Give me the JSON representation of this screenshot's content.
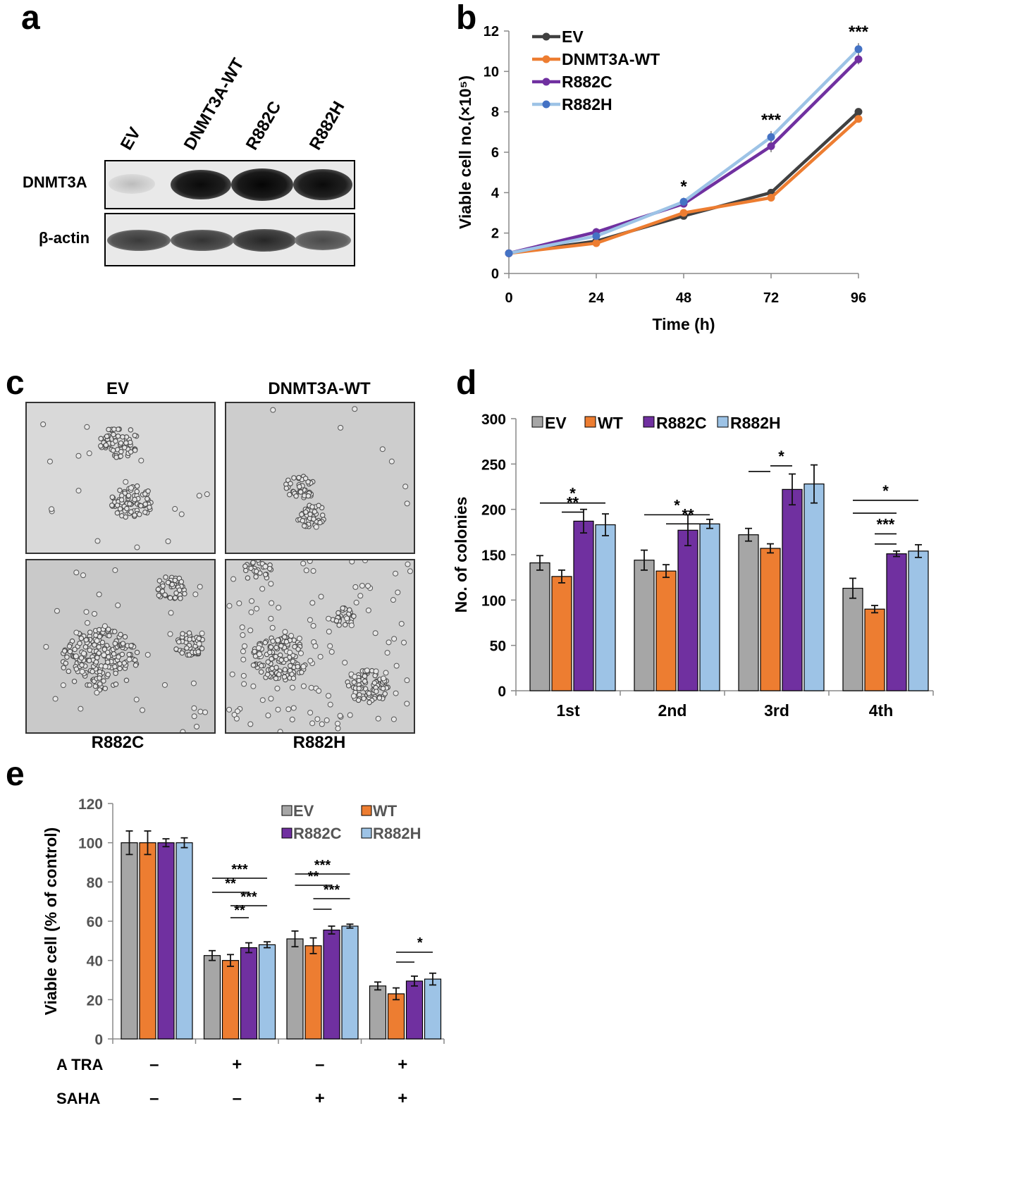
{
  "panels": {
    "a": "a",
    "b": "b",
    "c": "c",
    "d": "d",
    "e": "e"
  },
  "blot": {
    "lanes": [
      "EV",
      "DNMT3A-WT",
      "R882C",
      "R882H"
    ],
    "rows": [
      "DNMT3A",
      "β-actin"
    ]
  },
  "micrographs": {
    "top": [
      "EV",
      "DNMT3A-WT"
    ],
    "bottom": [
      "R882C",
      "R882H"
    ]
  },
  "chart_data": [
    {
      "panel": "b",
      "type": "line",
      "xlabel": "Time (h)",
      "ylabel": "Viable cell no.(×10⁵)",
      "x": [
        0,
        24,
        48,
        72,
        96
      ],
      "xlim": [
        0,
        96
      ],
      "ylim": [
        0,
        12
      ],
      "yticks": [
        0,
        2,
        4,
        6,
        8,
        10,
        12
      ],
      "series": [
        {
          "name": "EV",
          "color": "#404040",
          "values": [
            1.0,
            1.6,
            2.85,
            4.0,
            8.0
          ],
          "errors": [
            0.05,
            0.1,
            0.1,
            0.12,
            0.15
          ]
        },
        {
          "name": "DNMT3A-WT",
          "color": "#ed7d31",
          "values": [
            1.0,
            1.5,
            3.0,
            3.75,
            7.65
          ],
          "errors": [
            0.05,
            0.1,
            0.1,
            0.12,
            0.15
          ]
        },
        {
          "name": "R882C",
          "color": "#7030a0",
          "values": [
            1.0,
            2.05,
            3.45,
            6.3,
            10.6
          ],
          "errors": [
            0.05,
            0.2,
            0.15,
            0.3,
            0.25
          ]
        },
        {
          "name": "R882H",
          "color": "#9dc3e6",
          "marker_color": "#4472c4",
          "values": [
            1.0,
            1.85,
            3.55,
            6.75,
            11.1
          ],
          "errors": [
            0.05,
            0.15,
            0.2,
            0.3,
            0.3
          ]
        }
      ],
      "annotations": [
        {
          "x": 48,
          "text": "*"
        },
        {
          "x": 72,
          "text": "***"
        },
        {
          "x": 96,
          "text": "***"
        }
      ]
    },
    {
      "panel": "d",
      "type": "bar",
      "ylabel": "No. of colonies",
      "categories": [
        "1st",
        "2nd",
        "3rd",
        "4th"
      ],
      "ylim": [
        0,
        300
      ],
      "yticks": [
        0,
        50,
        100,
        150,
        200,
        250,
        300
      ],
      "series": [
        {
          "name": "EV",
          "color": "#a6a6a6",
          "values": [
            141,
            144,
            172,
            113
          ],
          "errors": [
            8,
            11,
            7,
            11
          ]
        },
        {
          "name": "WT",
          "color": "#ed7d31",
          "values": [
            126,
            132,
            157,
            90
          ],
          "errors": [
            7,
            7,
            5,
            4
          ]
        },
        {
          "name": "R882C",
          "color": "#7030a0",
          "values": [
            187,
            177,
            222,
            151
          ],
          "errors": [
            13,
            17,
            17,
            3
          ]
        },
        {
          "name": "R882H",
          "color": "#9dc3e6",
          "values": [
            183,
            184,
            228,
            154
          ],
          "errors": [
            12,
            5,
            21,
            7
          ]
        }
      ],
      "annotations": [
        {
          "text": "*",
          "group": 0
        },
        {
          "text": "**",
          "group": 0
        },
        {
          "text": "*",
          "group": 1
        },
        {
          "text": "**",
          "group": 1
        },
        {
          "text": "*",
          "group": 2
        },
        {
          "text": "*",
          "group": 3
        },
        {
          "text": "***",
          "group": 3
        }
      ]
    },
    {
      "panel": "e",
      "type": "bar",
      "ylabel": "Viable cell (% of control)",
      "groups": 4,
      "ylim": [
        0,
        120
      ],
      "yticks": [
        0,
        20,
        40,
        60,
        80,
        100,
        120
      ],
      "series": [
        {
          "name": "EV",
          "color": "#a6a6a6",
          "values": [
            100,
            42.5,
            51,
            27
          ],
          "errors": [
            6,
            2.5,
            4,
            2
          ]
        },
        {
          "name": "WT",
          "color": "#ed7d31",
          "values": [
            100,
            40,
            47.5,
            23
          ],
          "errors": [
            6,
            3,
            4,
            3
          ]
        },
        {
          "name": "R882C",
          "color": "#7030a0",
          "values": [
            100,
            46.5,
            55.5,
            29.5
          ],
          "errors": [
            2,
            2.5,
            2,
            2.5
          ]
        },
        {
          "name": "R882H",
          "color": "#9dc3e6",
          "values": [
            100,
            48,
            57.5,
            30.5
          ],
          "errors": [
            2.5,
            1.5,
            1,
            3
          ]
        }
      ],
      "treatments": [
        {
          "name": "A TRA",
          "marks": [
            "–",
            "+",
            "–",
            "+"
          ]
        },
        {
          "name": "SAHA",
          "marks": [
            "–",
            "–",
            "+",
            "+"
          ]
        }
      ],
      "annotations": [
        {
          "text": "***",
          "group": 1
        },
        {
          "text": "**",
          "group": 1
        },
        {
          "text": "***",
          "group": 1
        },
        {
          "text": "**",
          "group": 1
        },
        {
          "text": "***",
          "group": 2
        },
        {
          "text": "**",
          "group": 2
        },
        {
          "text": "***",
          "group": 2
        },
        {
          "text": "*",
          "group": 3
        }
      ]
    }
  ]
}
